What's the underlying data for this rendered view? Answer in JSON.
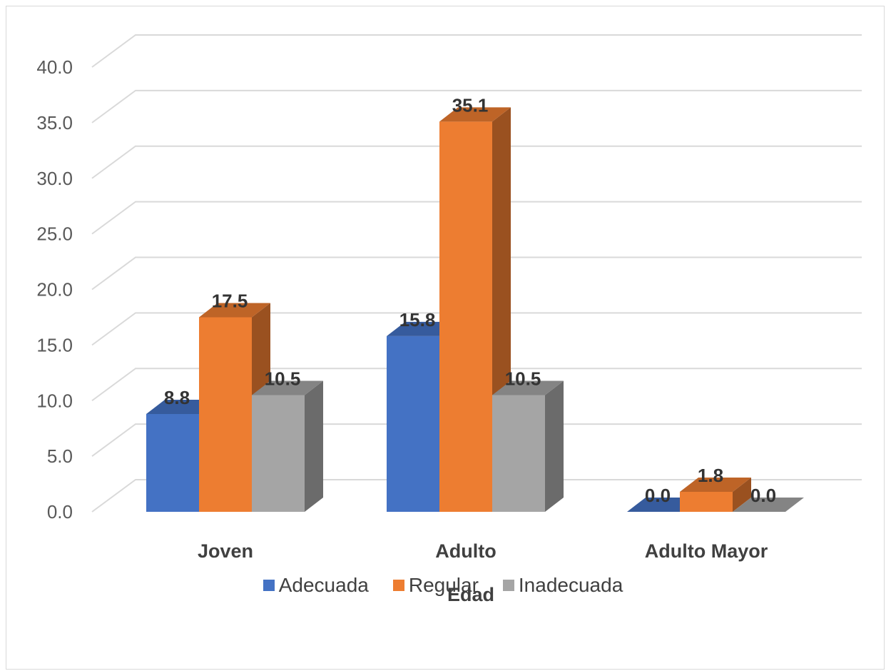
{
  "chart_data": {
    "type": "bar",
    "title": "",
    "xlabel": "Edad",
    "ylabel": "",
    "ylim": [
      0,
      40
    ],
    "y_ticks": [
      "0.0",
      "5.0",
      "10.0",
      "15.0",
      "20.0",
      "25.0",
      "30.0",
      "35.0",
      "40.0"
    ],
    "categories": [
      "Joven",
      "Adulto",
      "Adulto Mayor"
    ],
    "series": [
      {
        "name": "Adecuada",
        "values": [
          8.8,
          15.8,
          0.0
        ],
        "labels": [
          "8.8",
          "15.8",
          "0.0"
        ],
        "color": "#4472C4"
      },
      {
        "name": "Regular",
        "values": [
          17.5,
          35.1,
          1.8
        ],
        "labels": [
          "17.5",
          "35.1",
          "1.8"
        ],
        "color": "#ED7D31"
      },
      {
        "name": "Inadecuada",
        "values": [
          10.5,
          10.5,
          0.0
        ],
        "labels": [
          "10.5",
          "10.5",
          "0.0"
        ],
        "color": "#A5A5A5"
      }
    ],
    "grid": true,
    "legend_position": "bottom",
    "style": "3d-clustered-column"
  }
}
